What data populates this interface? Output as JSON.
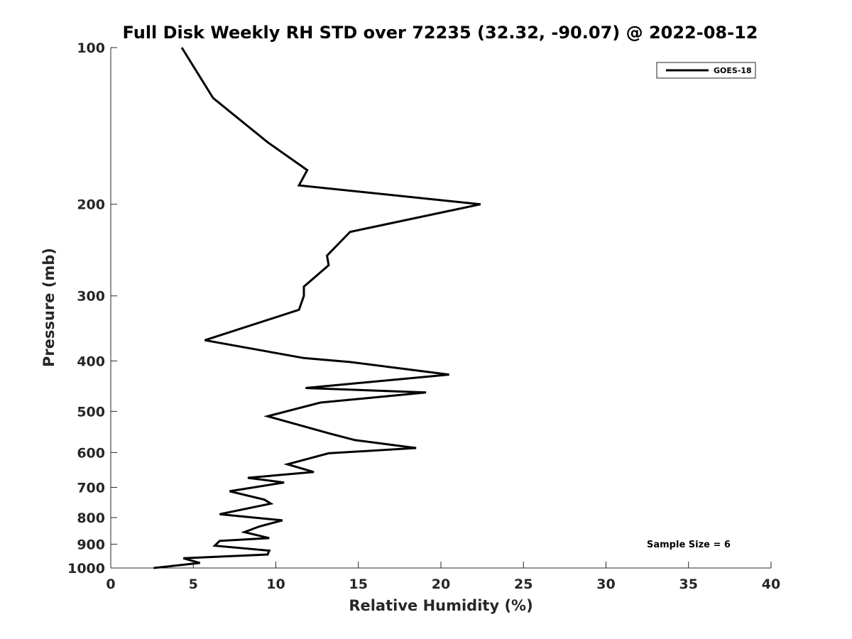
{
  "chart_data": {
    "type": "line",
    "title": "Full Disk Weekly RH STD over 72235 (32.32, -90.07) @ 2022-08-12",
    "xlabel": "Relative Humidity (%)",
    "ylabel": "Pressure (mb)",
    "xlim": [
      0,
      40
    ],
    "ylim": [
      100,
      1000
    ],
    "y_scale": "log",
    "y_reversed": true,
    "grid": false,
    "legend_position": "top-right",
    "x_ticks": [
      "0",
      "5",
      "10",
      "15",
      "20",
      "25",
      "30",
      "35",
      "40"
    ],
    "y_ticks": [
      "100",
      "200",
      "300",
      "400",
      "500",
      "600",
      "700",
      "800",
      "900",
      "1000"
    ],
    "annotation": "Sample Size = 6",
    "colors": {
      "series": "#000000",
      "axes": "#262626"
    },
    "series": [
      {
        "name": "GOES-18",
        "x": [
          4.3,
          6.2,
          9.5,
          11.9,
          11.4,
          22.4,
          14.5,
          13.1,
          13.2,
          11.7,
          11.7,
          11.4,
          5.7,
          11.7,
          14.5,
          20.5,
          11.8,
          19.1,
          12.7,
          9.5,
          13.3,
          14.8,
          18.5,
          13.2,
          10.7,
          12.3,
          8.3,
          10.5,
          7.2,
          9.3,
          9.7,
          6.6,
          10.4,
          9.0,
          8.1,
          9.6,
          6.6,
          6.3,
          9.6,
          9.5,
          4.4,
          5.4,
          2.6
        ],
        "y": [
          100,
          125,
          152,
          172,
          184,
          200,
          226,
          251,
          262,
          288,
          300,
          319,
          365,
          395,
          402,
          425,
          451,
          460,
          481,
          511,
          552,
          568,
          588,
          602,
          632,
          654,
          671,
          685,
          712,
          739,
          752,
          788,
          810,
          832,
          853,
          876,
          887,
          906,
          926,
          942,
          958,
          978,
          1000
        ]
      }
    ]
  }
}
